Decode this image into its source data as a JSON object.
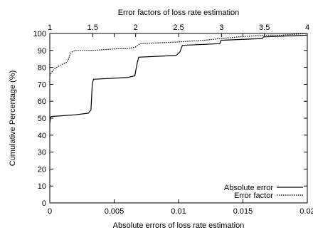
{
  "chart_data": {
    "type": "line",
    "title": "",
    "xlabel": "Absolute errors of loss rate estimation",
    "x2label": "Error factors of loss rate estimation",
    "ylabel": "Cumulative Percentage (%)",
    "xlim": [
      0,
      0.02
    ],
    "x2lim": [
      1,
      4
    ],
    "ylim": [
      0,
      100
    ],
    "xticks": [
      0,
      0.005,
      0.01,
      0.015,
      0.02
    ],
    "xtick_labels": [
      "0",
      "0.005",
      "0.01",
      "0.015",
      "0.02"
    ],
    "x2ticks": [
      1,
      1.5,
      2,
      2.5,
      3,
      3.5,
      4
    ],
    "x2tick_labels": [
      "1",
      "1.5",
      "2",
      "2.5",
      "3",
      "3.5",
      "4"
    ],
    "yticks": [
      0,
      10,
      20,
      30,
      40,
      50,
      60,
      70,
      80,
      90,
      100
    ],
    "ytick_labels": [
      "0",
      "10",
      "20",
      "30",
      "40",
      "50",
      "60",
      "70",
      "80",
      "90",
      "100"
    ],
    "grid": false,
    "legend_position": "bottom-right",
    "series": [
      {
        "name": "Absolute error",
        "axis": "bottom",
        "style": "solid",
        "x": [
          0,
          5e-05,
          0.0001,
          0.002,
          0.003,
          0.0032,
          0.0033,
          0.0034,
          0.006,
          0.0066,
          0.0068,
          0.0069,
          0.0098,
          0.0101,
          0.0102,
          0.0103,
          0.0132,
          0.0133,
          0.0134,
          0.0165,
          0.0166,
          0.02
        ],
        "y": [
          47,
          50,
          51,
          52,
          53,
          55,
          70,
          73,
          74,
          75,
          83,
          86,
          87,
          89,
          91,
          93,
          94,
          96,
          96,
          97,
          98,
          99
        ]
      },
      {
        "name": "Error factor",
        "axis": "top",
        "style": "dotted",
        "x": [
          1,
          1.02,
          1.05,
          1.08,
          1.15,
          1.2,
          1.22,
          1.23,
          1.25,
          1.3,
          1.5,
          1.8,
          1.9,
          2.0,
          2.05,
          2.5,
          2.8,
          3.0,
          3.2,
          3.5,
          3.7,
          4.0
        ],
        "y": [
          75,
          77,
          79,
          80,
          82,
          83,
          85,
          87,
          89,
          90,
          90,
          91,
          91,
          92,
          94,
          95,
          96,
          97,
          98,
          99,
          99,
          100
        ]
      }
    ]
  }
}
